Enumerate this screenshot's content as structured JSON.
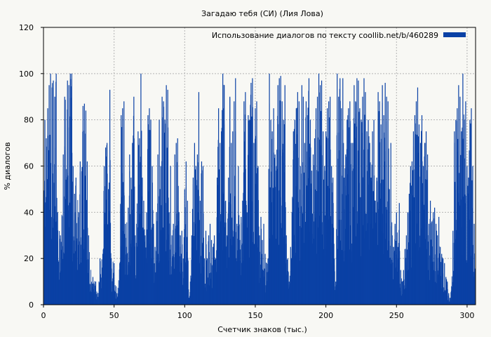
{
  "chart_data": {
    "type": "bar",
    "title": "Загадаю тебя (СИ) (Лия Лова)",
    "xlabel": "Счетчик знаков (тыс.)",
    "ylabel": "% диалогов",
    "xlim": [
      0,
      306
    ],
    "ylim": [
      0,
      120
    ],
    "x_ticks": [
      0,
      50,
      100,
      150,
      200,
      250,
      300
    ],
    "y_ticks": [
      0,
      20,
      40,
      60,
      80,
      100,
      120
    ],
    "grid": true,
    "legend_position": "top-right",
    "series": [
      {
        "name": "Использование диалогов по тексту  coollib.net/b/460289",
        "color": "#0a41a5",
        "peaks": [
          [
            1,
            80
          ],
          [
            2,
            72
          ],
          [
            3,
            85
          ],
          [
            4,
            95
          ],
          [
            5,
            100
          ],
          [
            7,
            97
          ],
          [
            8,
            90
          ],
          [
            9,
            100
          ],
          [
            10,
            40
          ],
          [
            12,
            30
          ],
          [
            14,
            65
          ],
          [
            15,
            90
          ],
          [
            17,
            97
          ],
          [
            18,
            95
          ],
          [
            19,
            100
          ],
          [
            20,
            100
          ],
          [
            21,
            60
          ],
          [
            22,
            48
          ],
          [
            23,
            55
          ],
          [
            25,
            40
          ],
          [
            26,
            62
          ],
          [
            28,
            86
          ],
          [
            29,
            87
          ],
          [
            30,
            84
          ],
          [
            31,
            62
          ],
          [
            32,
            30
          ],
          [
            35,
            12
          ],
          [
            37,
            10
          ],
          [
            38,
            5
          ],
          [
            40,
            20
          ],
          [
            42,
            22
          ],
          [
            43,
            60
          ],
          [
            44,
            68
          ],
          [
            45,
            70
          ],
          [
            46,
            50
          ],
          [
            47,
            93
          ],
          [
            48,
            20
          ],
          [
            50,
            18
          ],
          [
            52,
            5
          ],
          [
            54,
            18
          ],
          [
            55,
            82
          ],
          [
            56,
            85
          ],
          [
            57,
            88
          ],
          [
            58,
            35
          ],
          [
            60,
            42
          ],
          [
            61,
            65
          ],
          [
            62,
            55
          ],
          [
            63,
            70
          ],
          [
            64,
            90
          ],
          [
            65,
            30
          ],
          [
            66,
            35
          ],
          [
            67,
            75
          ],
          [
            68,
            72
          ],
          [
            69,
            100
          ],
          [
            70,
            55
          ],
          [
            71,
            45
          ],
          [
            72,
            30
          ],
          [
            73,
            40
          ],
          [
            74,
            82
          ],
          [
            75,
            85
          ],
          [
            76,
            80
          ],
          [
            77,
            60
          ],
          [
            78,
            35
          ],
          [
            79,
            25
          ],
          [
            80,
            40
          ],
          [
            81,
            65
          ],
          [
            82,
            80
          ],
          [
            83,
            60
          ],
          [
            84,
            90
          ],
          [
            85,
            88
          ],
          [
            86,
            80
          ],
          [
            87,
            95
          ],
          [
            88,
            93
          ],
          [
            89,
            40
          ],
          [
            90,
            60
          ],
          [
            91,
            30
          ],
          [
            92,
            35
          ],
          [
            93,
            65
          ],
          [
            94,
            70
          ],
          [
            95,
            72
          ],
          [
            96,
            40
          ],
          [
            97,
            30
          ],
          [
            98,
            32
          ],
          [
            99,
            20
          ],
          [
            100,
            50
          ],
          [
            101,
            62
          ],
          [
            102,
            45
          ],
          [
            103,
            3
          ],
          [
            104,
            10
          ],
          [
            105,
            30
          ],
          [
            106,
            55
          ],
          [
            107,
            70
          ],
          [
            108,
            60
          ],
          [
            109,
            65
          ],
          [
            110,
            92
          ],
          [
            111,
            45
          ],
          [
            112,
            62
          ],
          [
            113,
            60
          ],
          [
            114,
            20
          ],
          [
            115,
            32
          ],
          [
            116,
            20
          ],
          [
            117,
            30
          ],
          [
            118,
            35
          ],
          [
            119,
            28
          ],
          [
            120,
            25
          ],
          [
            121,
            30
          ],
          [
            122,
            20
          ],
          [
            123,
            55
          ],
          [
            124,
            85
          ],
          [
            125,
            70
          ],
          [
            126,
            75
          ],
          [
            127,
            100
          ],
          [
            128,
            95
          ],
          [
            129,
            45
          ],
          [
            130,
            30
          ],
          [
            131,
            55
          ],
          [
            132,
            90
          ],
          [
            133,
            70
          ],
          [
            134,
            75
          ],
          [
            135,
            88
          ],
          [
            136,
            98
          ],
          [
            137,
            35
          ],
          [
            138,
            60
          ],
          [
            139,
            28
          ],
          [
            140,
            38
          ],
          [
            141,
            45
          ],
          [
            142,
            88
          ],
          [
            143,
            92
          ],
          [
            144,
            40
          ],
          [
            145,
            82
          ],
          [
            146,
            80
          ],
          [
            147,
            96
          ],
          [
            148,
            98
          ],
          [
            149,
            70
          ],
          [
            150,
            85
          ],
          [
            151,
            88
          ],
          [
            152,
            60
          ],
          [
            153,
            30
          ],
          [
            154,
            38
          ],
          [
            155,
            28
          ],
          [
            156,
            35
          ],
          [
            157,
            22
          ],
          [
            158,
            18
          ],
          [
            159,
            20
          ],
          [
            160,
            100
          ],
          [
            161,
            80
          ],
          [
            162,
            75
          ],
          [
            163,
            85
          ],
          [
            164,
            65
          ],
          [
            165,
            60
          ],
          [
            166,
            95
          ],
          [
            167,
            98
          ],
          [
            168,
            99
          ],
          [
            169,
            88
          ],
          [
            170,
            80
          ],
          [
            171,
            95
          ],
          [
            172,
            30
          ],
          [
            173,
            20
          ],
          [
            174,
            10
          ],
          [
            175,
            25
          ],
          [
            176,
            40
          ],
          [
            177,
            75
          ],
          [
            178,
            80
          ],
          [
            179,
            85
          ],
          [
            180,
            92
          ],
          [
            181,
            88
          ],
          [
            182,
            60
          ],
          [
            183,
            95
          ],
          [
            184,
            90
          ],
          [
            185,
            70
          ],
          [
            186,
            88
          ],
          [
            187,
            82
          ],
          [
            188,
            98
          ],
          [
            189,
            80
          ],
          [
            190,
            58
          ],
          [
            191,
            65
          ],
          [
            192,
            72
          ],
          [
            193,
            85
          ],
          [
            194,
            90
          ],
          [
            195,
            100
          ],
          [
            196,
            95
          ],
          [
            197,
            97
          ],
          [
            198,
            75
          ],
          [
            199,
            60
          ],
          [
            200,
            75
          ],
          [
            201,
            85
          ],
          [
            202,
            88
          ],
          [
            203,
            90
          ],
          [
            204,
            60
          ],
          [
            205,
            55
          ],
          [
            206,
            20
          ],
          [
            207,
            10
          ],
          [
            208,
            100
          ],
          [
            209,
            90
          ],
          [
            210,
            98
          ],
          [
            211,
            85
          ],
          [
            212,
            98
          ],
          [
            213,
            55
          ],
          [
            214,
            65
          ],
          [
            215,
            80
          ],
          [
            216,
            85
          ],
          [
            217,
            88
          ],
          [
            218,
            70
          ],
          [
            219,
            70
          ],
          [
            220,
            95
          ],
          [
            221,
            88
          ],
          [
            222,
            98
          ],
          [
            223,
            97
          ],
          [
            224,
            85
          ],
          [
            225,
            80
          ],
          [
            226,
            90
          ],
          [
            227,
            98
          ],
          [
            228,
            92
          ],
          [
            229,
            75
          ],
          [
            230,
            80
          ],
          [
            231,
            70
          ],
          [
            232,
            55
          ],
          [
            233,
            75
          ],
          [
            234,
            80
          ],
          [
            235,
            45
          ],
          [
            236,
            55
          ],
          [
            237,
            92
          ],
          [
            238,
            88
          ],
          [
            239,
            78
          ],
          [
            240,
            95
          ],
          [
            241,
            82
          ],
          [
            242,
            96
          ],
          [
            243,
            90
          ],
          [
            244,
            88
          ],
          [
            245,
            50
          ],
          [
            246,
            70
          ],
          [
            247,
            30
          ],
          [
            248,
            25
          ],
          [
            249,
            35
          ],
          [
            250,
            40
          ],
          [
            251,
            25
          ],
          [
            252,
            44
          ],
          [
            253,
            15
          ],
          [
            254,
            10
          ],
          [
            255,
            15
          ],
          [
            256,
            24
          ],
          [
            257,
            30
          ],
          [
            258,
            40
          ],
          [
            259,
            48
          ],
          [
            260,
            60
          ],
          [
            261,
            62
          ],
          [
            262,
            75
          ],
          [
            263,
            82
          ],
          [
            264,
            88
          ],
          [
            265,
            94
          ],
          [
            266,
            78
          ],
          [
            267,
            70
          ],
          [
            268,
            82
          ],
          [
            269,
            60
          ],
          [
            270,
            70
          ],
          [
            271,
            75
          ],
          [
            272,
            65
          ],
          [
            273,
            35
          ],
          [
            274,
            45
          ],
          [
            275,
            36
          ],
          [
            276,
            40
          ],
          [
            277,
            42
          ],
          [
            278,
            35
          ],
          [
            279,
            30
          ],
          [
            280,
            38
          ],
          [
            281,
            25
          ],
          [
            282,
            22
          ],
          [
            283,
            20
          ],
          [
            284,
            18
          ],
          [
            285,
            12
          ],
          [
            286,
            10
          ],
          [
            287,
            5
          ],
          [
            288,
            3
          ],
          [
            289,
            8
          ],
          [
            290,
            32
          ],
          [
            291,
            75
          ],
          [
            292,
            80
          ],
          [
            293,
            85
          ],
          [
            294,
            95
          ],
          [
            295,
            90
          ],
          [
            296,
            75
          ],
          [
            297,
            100
          ],
          [
            298,
            80
          ],
          [
            299,
            88
          ],
          [
            300,
            60
          ],
          [
            301,
            55
          ],
          [
            302,
            80
          ],
          [
            303,
            85
          ],
          [
            304,
            60
          ],
          [
            305,
            35
          ]
        ]
      }
    ]
  }
}
